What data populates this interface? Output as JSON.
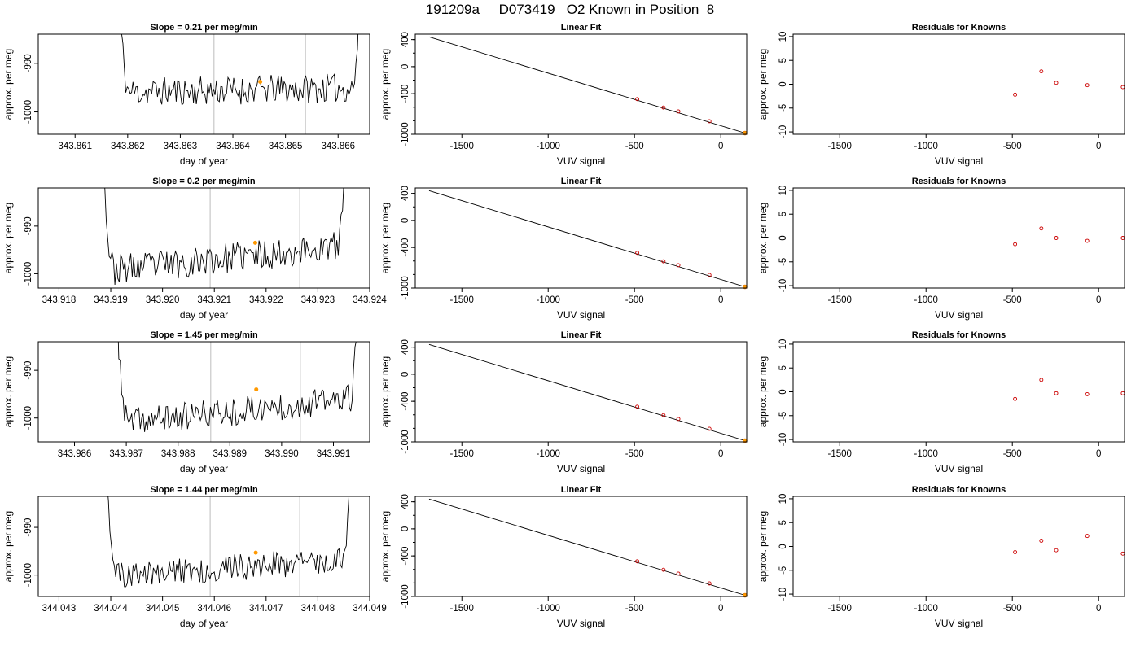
{
  "title": "191209a     D073419   O2 Known in Position  8",
  "chart_data": {
    "type": "grid",
    "colors": {
      "trace": "#000000",
      "marker": "#ff9900",
      "residual_point": "#cc0000",
      "guide_line": "#cccccc",
      "fit_line": "#000000"
    },
    "rows": [
      {
        "timeseries": {
          "type": "line",
          "title": "Slope =  0.21  per meg/min",
          "xlabel": "day of year",
          "ylabel": "approx. per meg",
          "xlim": [
            343.8603,
            343.8666
          ],
          "ylim": [
            -1004.6,
            -984.0
          ],
          "xticks": [
            "343.861",
            "343.862",
            "343.863",
            "343.864",
            "343.865",
            "343.866"
          ],
          "yticks": [
            "-990",
            "-1000"
          ],
          "vlines": [
            343.86364,
            343.86538
          ],
          "x_start": 343.8618,
          "x_end": 343.86645,
          "baseline": -995.5,
          "trend": 0.9,
          "noise": 3.0,
          "seed": 11,
          "marker": {
            "x": 343.86452,
            "y": -993.8
          }
        },
        "fit": {
          "type": "line",
          "title": "Linear Fit",
          "xlabel": "VUV signal",
          "ylabel": "approx. per meg",
          "xlim": [
            -1770,
            150
          ],
          "ylim": [
            -1000,
            480
          ],
          "xticks": [
            -1500,
            -1000,
            -500,
            0
          ],
          "yticks": [
            400,
            0,
            -400,
            -1000
          ],
          "ytick_labels": [
            "400",
            "0",
            "-400",
            "-1000"
          ],
          "line": [
            [
              -1690,
              440
            ],
            [
              140,
              -982
            ]
          ],
          "points": [
            [
              -484,
              -480
            ],
            [
              -332,
              -605
            ],
            [
              -246,
              -662
            ],
            [
              -66,
              -807
            ]
          ],
          "highlight": [
            [
              140,
              -982
            ]
          ]
        },
        "residuals": {
          "type": "scatter",
          "title": "Residuals for Knowns",
          "ylabel": "approx. per meg",
          "xlabel": "VUV signal",
          "xlim": [
            -1770,
            150
          ],
          "ylim": [
            -10.5,
            10.5
          ],
          "xticks": [
            -1500,
            -1000,
            -500,
            0
          ],
          "yticks": [
            10,
            5,
            0,
            -5,
            -10
          ],
          "points": [
            [
              -484,
              -2.2
            ],
            [
              -332,
              2.7
            ],
            [
              -246,
              0.3
            ],
            [
              -66,
              -0.2
            ],
            [
              140,
              -0.6
            ]
          ]
        }
      },
      {
        "timeseries": {
          "type": "line",
          "title": "Slope =  0.2  per meg/min",
          "xlabel": "day of year",
          "ylabel": "approx. per meg",
          "xlim": [
            343.9176,
            343.924
          ],
          "ylim": [
            -1003.0,
            -982.0
          ],
          "xticks": [
            "343.918",
            "343.919",
            "343.920",
            "343.921",
            "343.922",
            "343.923",
            "343.924"
          ],
          "yticks": [
            "-990",
            "-1000"
          ],
          "vlines": [
            343.92092,
            343.92265
          ],
          "x_start": 343.91883,
          "x_end": 343.92356,
          "baseline": -996.8,
          "trend": 5.3,
          "noise": 3.2,
          "seed": 23,
          "marker": {
            "x": 343.92179,
            "y": -993.5
          }
        },
        "fit": {
          "type": "line",
          "title": "Linear Fit",
          "xlabel": "VUV signal",
          "ylabel": "approx. per meg",
          "xlim": [
            -1770,
            150
          ],
          "ylim": [
            -1000,
            480
          ],
          "xticks": [
            -1500,
            -1000,
            -500,
            0
          ],
          "yticks": [
            400,
            0,
            -400,
            -1000
          ],
          "ytick_labels": [
            "400",
            "0",
            "-400",
            "-1000"
          ],
          "line": [
            [
              -1690,
              440
            ],
            [
              140,
              -982
            ]
          ],
          "points": [
            [
              -484,
              -480
            ],
            [
              -332,
              -605
            ],
            [
              -246,
              -662
            ],
            [
              -66,
              -807
            ]
          ],
          "highlight": [
            [
              140,
              -982
            ]
          ]
        },
        "residuals": {
          "type": "scatter",
          "title": "Residuals for Knowns",
          "ylabel": "approx. per meg",
          "xlabel": "VUV signal",
          "xlim": [
            -1770,
            150
          ],
          "ylim": [
            -10.5,
            10.5
          ],
          "xticks": [
            -1500,
            -1000,
            -500,
            0
          ],
          "yticks": [
            10,
            5,
            0,
            -5,
            -10
          ],
          "points": [
            [
              -484,
              -1.3
            ],
            [
              -332,
              2.0
            ],
            [
              -246,
              0.0
            ],
            [
              -66,
              -0.6
            ],
            [
              140,
              0.0
            ]
          ]
        }
      },
      {
        "timeseries": {
          "type": "line",
          "title": "Slope =  1.45  per meg/min",
          "xlabel": "day of year",
          "ylabel": "approx. per meg",
          "xlim": [
            343.9853,
            343.9917
          ],
          "ylim": [
            -1005.0,
            -984.0
          ],
          "xticks": [
            "343.986",
            "343.987",
            "343.988",
            "343.989",
            "343.990",
            "343.991"
          ],
          "yticks": [
            "-990",
            "-1000"
          ],
          "vlines": [
            343.98863,
            343.99036
          ],
          "x_start": 343.9868,
          "x_end": 343.9915,
          "baseline": -998.5,
          "trend": 5.4,
          "noise": 3.0,
          "seed": 37,
          "marker": {
            "x": 343.98951,
            "y": -994.0
          }
        },
        "fit": {
          "type": "line",
          "title": "Linear Fit",
          "xlabel": "VUV signal",
          "ylabel": "approx. per meg",
          "xlim": [
            -1770,
            150
          ],
          "ylim": [
            -1000,
            480
          ],
          "xticks": [
            -1500,
            -1000,
            -500,
            0
          ],
          "yticks": [
            400,
            0,
            -400,
            -1000
          ],
          "ytick_labels": [
            "400",
            "0",
            "-400",
            "-1000"
          ],
          "line": [
            [
              -1690,
              440
            ],
            [
              140,
              -982
            ]
          ],
          "points": [
            [
              -484,
              -480
            ],
            [
              -332,
              -605
            ],
            [
              -246,
              -662
            ],
            [
              -66,
              -807
            ]
          ],
          "highlight": [
            [
              140,
              -982
            ]
          ]
        },
        "residuals": {
          "type": "scatter",
          "title": "Residuals for Knowns",
          "ylabel": "approx. per meg",
          "xlabel": "VUV signal",
          "xlim": [
            -1770,
            150
          ],
          "ylim": [
            -10.5,
            10.5
          ],
          "xticks": [
            -1500,
            -1000,
            -500,
            0
          ],
          "yticks": [
            10,
            5,
            0,
            -5,
            -10
          ],
          "points": [
            [
              -484,
              -1.5
            ],
            [
              -332,
              2.5
            ],
            [
              -246,
              -0.3
            ],
            [
              -66,
              -0.5
            ],
            [
              140,
              -0.3
            ]
          ]
        }
      },
      {
        "timeseries": {
          "type": "line",
          "title": "Slope =  1.44  per meg/min",
          "xlabel": "day of year",
          "ylabel": "approx. per meg",
          "xlim": [
            344.0426,
            344.049
          ],
          "ylim": [
            -1004.5,
            -983.5
          ],
          "xticks": [
            "344.043",
            "344.044",
            "344.045",
            "344.046",
            "344.047",
            "344.048",
            "344.049"
          ],
          "yticks": [
            "-990",
            "-1000"
          ],
          "vlines": [
            344.04592,
            344.04765
          ],
          "x_start": 344.0439,
          "x_end": 344.04866,
          "baseline": -998.5,
          "trend": 3.8,
          "noise": 2.8,
          "seed": 51,
          "marker": {
            "x": 344.0468,
            "y": -995.3
          }
        },
        "fit": {
          "type": "line",
          "title": "Linear Fit",
          "xlabel": "VUV signal",
          "ylabel": "approx. per meg",
          "xlim": [
            -1770,
            150
          ],
          "ylim": [
            -1000,
            480
          ],
          "xticks": [
            -1500,
            -1000,
            -500,
            0
          ],
          "yticks": [
            400,
            0,
            -400,
            -1000
          ],
          "ytick_labels": [
            "400",
            "0",
            "-400",
            "-1000"
          ],
          "line": [
            [
              -1690,
              440
            ],
            [
              140,
              -982
            ]
          ],
          "points": [
            [
              -484,
              -480
            ],
            [
              -332,
              -605
            ],
            [
              -246,
              -662
            ],
            [
              -66,
              -807
            ]
          ],
          "highlight": [
            [
              140,
              -982
            ]
          ]
        },
        "residuals": {
          "type": "scatter",
          "title": "Residuals for Knowns",
          "ylabel": "approx. per meg",
          "xlabel": "VUV signal",
          "xlim": [
            -1770,
            150
          ],
          "ylim": [
            -10.5,
            10.5
          ],
          "xticks": [
            -1500,
            -1000,
            -500,
            0
          ],
          "yticks": [
            10,
            5,
            0,
            -5,
            -10
          ],
          "points": [
            [
              -484,
              -1.2
            ],
            [
              -332,
              1.2
            ],
            [
              -246,
              -0.8
            ],
            [
              -66,
              2.2
            ],
            [
              140,
              -1.5
            ]
          ]
        }
      }
    ]
  }
}
